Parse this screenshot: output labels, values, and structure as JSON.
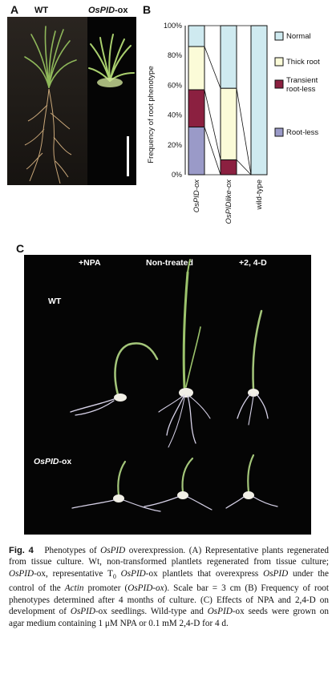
{
  "panel_a": {
    "letter": "A",
    "label_wt": "WT",
    "label_ox_italic": "OsPID",
    "label_ox_suffix": "-ox"
  },
  "panel_b": {
    "letter": "B"
  },
  "chart_data": {
    "type": "bar",
    "stacked": true,
    "ylabel": "Frequency of root phenotype",
    "ylim": [
      0,
      100
    ],
    "yticks": [
      "0%",
      "20%",
      "40%",
      "60%",
      "80%",
      "100%"
    ],
    "categories": [
      "OsPID-ox",
      "OsPIDlike-ox",
      "wild-type"
    ],
    "series": [
      {
        "name": "Root-less",
        "color": "#9a9ac8",
        "values": [
          32,
          0,
          0
        ]
      },
      {
        "name": "Transient root-less",
        "color": "#8b2040",
        "values": [
          25,
          10,
          0
        ]
      },
      {
        "name": "Thick root",
        "color": "#fbfbd8",
        "values": [
          29,
          48,
          0
        ]
      },
      {
        "name": "Normal",
        "color": "#cfeaf0",
        "values": [
          14,
          42,
          100
        ]
      }
    ],
    "legend": [
      "Normal",
      "Thick root",
      "Transient root-less",
      "Root-less"
    ],
    "legend_placement": "right",
    "grid": false
  },
  "panel_c": {
    "letter": "C",
    "col_npa": "+NPA",
    "col_nontreated": "Non-treated",
    "col_24d": "+2, 4-D",
    "row_wt": "WT",
    "row_ox_italic": "OsPID",
    "row_ox_suffix": "-ox"
  },
  "caption": {
    "fig": "Fig. 4",
    "title_pre": "Phenotypes of ",
    "title_gene": "OsPID",
    "title_post": " overexpression. (A) Representative plants regenerated from tissue culture. Wt, non-transformed plantlets regenerated from tissue culture; ",
    "gene2": "OsPID",
    "t2": "-ox, representative T",
    "sub0": "0",
    "t3": " ",
    "gene3": "OsPID",
    "t4": "-ox plantlets that overexpress ",
    "gene4": "OsPID",
    "t5": " under the control of the ",
    "gene5": "Actin",
    "t6": " promoter (",
    "gene6": "OsPID-ox",
    "t7": "). Scale bar = 3 cm (B) Frequency of root phenotypes determined after 4 months of culture. (C) Effects of NPA and 2,4-D on development of ",
    "gene7": "OsPID",
    "t8": "-ox seedlings. Wild-type and ",
    "gene8": "OsPID",
    "t9": "-ox seeds were grown on agar medium containing 1 μM NPA or 0.1 mM 2,4-D for 4 d."
  }
}
